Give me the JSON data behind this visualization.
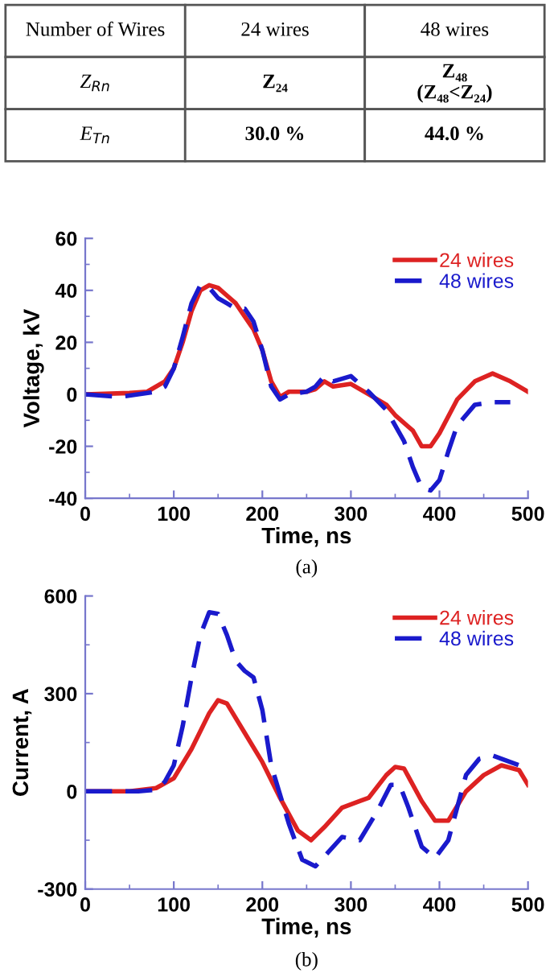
{
  "chart_data": [
    {
      "type": "other",
      "categories": [
        "Number of Wires",
        "24 wires",
        "48 wires"
      ],
      "y_categories": [
        "Z$_{Rn}$",
        "E$_{Tn}$"
      ],
      "cell_labels": [
        [
          "Z₂₄",
          "Z₄₈\n(Z₄₈<Z₂₄)"
        ],
        [
          "30.0 %",
          "44.0 %"
        ]
      ]
    },
    {
      "type": "line",
      "xlabel": "Time, ns",
      "ylabel": "Voltage, kV",
      "xlim": [
        0,
        500
      ],
      "xticks": [
        0,
        100,
        200,
        300,
        400,
        500
      ],
      "ylim": [
        -40,
        60
      ],
      "yticks": [
        -40,
        -20,
        0,
        20,
        40,
        60
      ],
      "grid": false,
      "legend": "top right",
      "annotations": [
        "(a)"
      ],
      "series": [
        {
          "name": "24 wires",
          "color": "#dd2222",
          "line_style": "solid",
          "x": [
            0,
            50,
            70,
            90,
            100,
            110,
            120,
            130,
            140,
            150,
            160,
            170,
            180,
            190,
            200,
            210,
            220,
            230,
            240,
            250,
            260,
            270,
            280,
            300,
            320,
            340,
            350,
            370,
            380,
            390,
            400,
            420,
            440,
            460,
            480,
            500
          ],
          "values": [
            0,
            0.5,
            1,
            5,
            10,
            20,
            32,
            40,
            42,
            41,
            38,
            35,
            30,
            25,
            17,
            5,
            -1,
            1,
            1,
            1,
            2,
            5,
            3,
            4,
            0,
            -4,
            -8,
            -14,
            -20,
            -20,
            -15,
            -2,
            5,
            8,
            5,
            1
          ]
        },
        {
          "name": "48 wires",
          "color": "#1a1acc",
          "line_style": "dashed",
          "x": [
            0,
            40,
            80,
            90,
            100,
            110,
            120,
            130,
            140,
            150,
            160,
            170,
            180,
            190,
            200,
            210,
            220,
            230,
            250,
            260,
            270,
            280,
            300,
            320,
            340,
            360,
            370,
            380,
            390,
            400,
            410,
            420,
            440,
            460,
            480
          ],
          "values": [
            0,
            -1,
            1,
            3,
            10,
            22,
            35,
            42,
            41,
            37,
            35,
            33,
            33,
            28,
            17,
            3,
            -2,
            0,
            1,
            3,
            7,
            5,
            7,
            1,
            -6,
            -18,
            -28,
            -36,
            -37,
            -33,
            -22,
            -12,
            -4,
            -3,
            -3
          ]
        }
      ]
    },
    {
      "type": "line",
      "xlabel": "Time, ns",
      "ylabel": "Current, A",
      "xlim": [
        0,
        500
      ],
      "xticks": [
        0,
        100,
        200,
        300,
        400,
        500
      ],
      "ylim": [
        -300,
        600
      ],
      "yticks": [
        -300,
        0,
        300,
        600
      ],
      "grid": false,
      "legend": "top right",
      "annotations": [
        "(b)"
      ],
      "series": [
        {
          "name": "24 wires",
          "color": "#dd2222",
          "line_style": "solid",
          "x": [
            0,
            50,
            80,
            100,
            120,
            140,
            150,
            160,
            180,
            200,
            220,
            240,
            255,
            270,
            290,
            310,
            320,
            340,
            350,
            360,
            380,
            395,
            410,
            430,
            450,
            470,
            490,
            500
          ],
          "values": [
            0,
            0,
            10,
            40,
            130,
            240,
            280,
            270,
            180,
            90,
            -20,
            -120,
            -150,
            -110,
            -50,
            -30,
            -20,
            50,
            75,
            70,
            -30,
            -90,
            -90,
            0,
            50,
            80,
            65,
            20
          ]
        },
        {
          "name": "48 wires",
          "color": "#1a1acc",
          "line_style": "dashed",
          "x": [
            0,
            60,
            80,
            90,
            100,
            110,
            120,
            130,
            140,
            150,
            160,
            170,
            180,
            190,
            200,
            210,
            230,
            245,
            260,
            270,
            290,
            300,
            310,
            330,
            345,
            355,
            365,
            380,
            395,
            410,
            430,
            445,
            460,
            475,
            500
          ],
          "values": [
            0,
            0,
            5,
            30,
            80,
            200,
            350,
            480,
            550,
            545,
            480,
            400,
            370,
            350,
            250,
            80,
            -100,
            -210,
            -230,
            -200,
            -140,
            -145,
            -150,
            -60,
            20,
            20,
            -50,
            -170,
            -205,
            -150,
            50,
            100,
            110,
            95,
            70
          ]
        }
      ]
    }
  ]
}
